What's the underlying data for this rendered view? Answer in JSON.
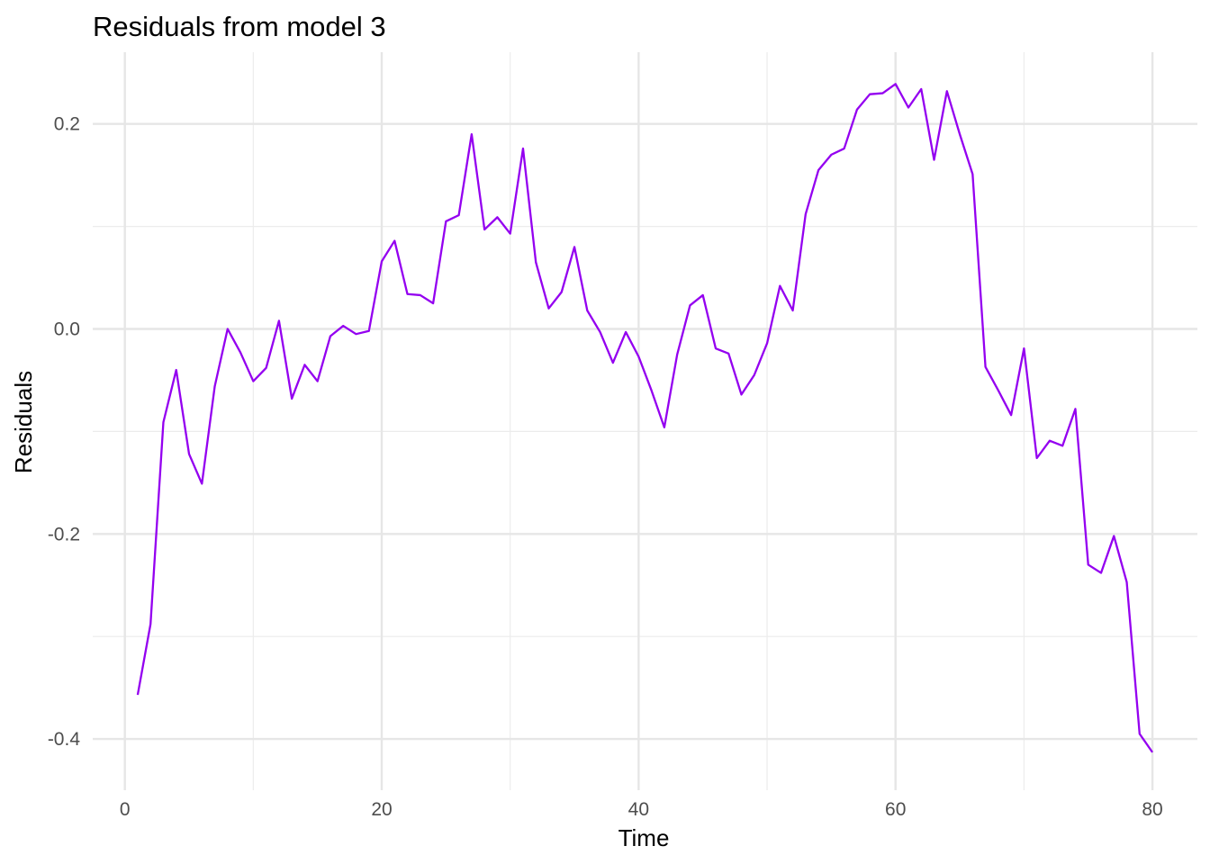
{
  "chart_data": {
    "type": "line",
    "title": "Residuals from model 3",
    "xlabel": "Time",
    "ylabel": "Residuals",
    "xlim": [
      -2.5,
      83.5
    ],
    "ylim": [
      -0.45,
      0.27
    ],
    "x_ticks": [
      0,
      20,
      40,
      60,
      80
    ],
    "x_tick_labels": [
      "0",
      "20",
      "40",
      "60",
      "80"
    ],
    "x_minor_ticks": [
      10,
      30,
      50,
      70
    ],
    "y_ticks": [
      -0.4,
      -0.2,
      0.0,
      0.2
    ],
    "y_tick_labels": [
      "-0.4",
      "-0.2",
      "0.0",
      "0.2"
    ],
    "y_minor_ticks": [
      -0.3,
      -0.1,
      0.1
    ],
    "grid": true,
    "legend": "none",
    "series": [
      {
        "color": "#9400f0",
        "x": [
          1,
          2,
          3,
          4,
          5,
          6,
          7,
          8,
          9,
          10,
          11,
          12,
          13,
          14,
          15,
          16,
          17,
          18,
          19,
          20,
          21,
          22,
          23,
          24,
          25,
          26,
          27,
          28,
          29,
          30,
          31,
          32,
          33,
          34,
          35,
          36,
          37,
          38,
          39,
          40,
          41,
          42,
          43,
          44,
          45,
          46,
          47,
          48,
          49,
          50,
          51,
          52,
          53,
          54,
          55,
          56,
          57,
          58,
          59,
          60,
          61,
          62,
          63,
          64,
          65,
          66,
          67,
          68,
          69,
          70,
          71,
          72,
          73,
          74,
          75,
          76,
          77,
          78,
          79,
          80
        ],
        "values": [
          -0.357,
          -0.288,
          -0.091,
          -0.04,
          -0.122,
          -0.151,
          -0.056,
          0.0,
          -0.023,
          -0.051,
          -0.038,
          0.008,
          -0.068,
          -0.035,
          -0.051,
          -0.007,
          0.003,
          -0.005,
          -0.002,
          0.066,
          0.086,
          0.034,
          0.033,
          0.025,
          0.105,
          0.111,
          0.19,
          0.097,
          0.109,
          0.093,
          0.176,
          0.065,
          0.02,
          0.036,
          0.08,
          0.018,
          -0.003,
          -0.033,
          -0.003,
          -0.027,
          -0.06,
          -0.096,
          -0.025,
          0.023,
          0.033,
          -0.019,
          -0.024,
          -0.064,
          -0.045,
          -0.014,
          0.042,
          0.018,
          0.112,
          0.155,
          0.17,
          0.176,
          0.214,
          0.229,
          0.23,
          0.239,
          0.216,
          0.234,
          0.165,
          0.232,
          0.19,
          0.151,
          -0.037,
          -0.06,
          -0.084,
          -0.019,
          -0.126,
          -0.109,
          -0.114,
          -0.078,
          -0.23,
          -0.238,
          -0.202,
          -0.247,
          -0.395,
          -0.413
        ]
      }
    ]
  }
}
